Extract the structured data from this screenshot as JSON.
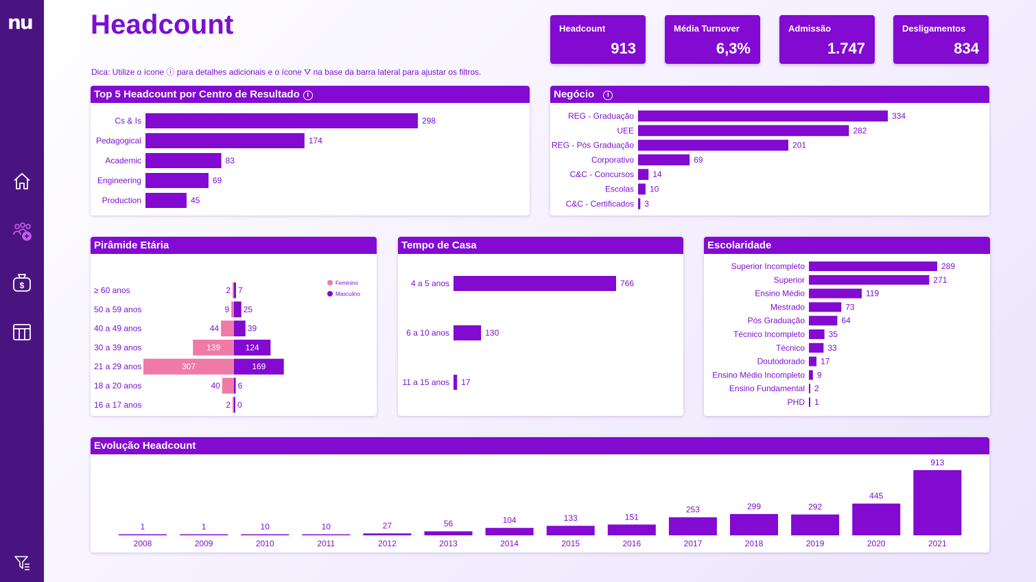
{
  "app": {
    "logo": "nu",
    "title": "Headcount",
    "tip": "Dica: Utilize o ícone ⓘ para detalhes adicionais e o ícone ⛛ na base da barra lateral para ajustar os filtros."
  },
  "sidebar": {
    "icons": [
      "home-icon",
      "people-icon",
      "money-bag-icon",
      "table-icon",
      "filter-icon"
    ]
  },
  "kpis": [
    {
      "label": "Headcount",
      "value": "913"
    },
    {
      "label": "Média Turnover",
      "value": "6,3%"
    },
    {
      "label": "Admissão",
      "value": "1.747"
    },
    {
      "label": "Desligamentos",
      "value": "834"
    }
  ],
  "colors": {
    "accent": "#820ad1",
    "female": "#f07aa6",
    "sidebar": "#4a1480"
  },
  "panels": {
    "top5": "Top 5 Headcount por Centro de Resultado",
    "negocio": "Negócio",
    "piramide": "Pirâmide Etária",
    "tempo": "Tempo de Casa",
    "escolaridade": "Escolaridade",
    "evolucao": "Evolução Headcount"
  },
  "chart_data": [
    {
      "id": "top5",
      "type": "bar",
      "orientation": "horizontal",
      "title": "Top 5 Headcount por Centro de Resultado",
      "categories": [
        "Cs & Is",
        "Pedagogical",
        "Academic",
        "Engineering",
        "Production"
      ],
      "values": [
        298,
        174,
        83,
        69,
        45
      ]
    },
    {
      "id": "negocio",
      "type": "bar",
      "orientation": "horizontal",
      "title": "Negócio",
      "categories": [
        "REG - Graduação",
        "UEE",
        "REG - Pós Graduação",
        "Corporativo",
        "C&C - Concursos",
        "Escolas",
        "C&C - Certificados"
      ],
      "values": [
        334,
        282,
        201,
        69,
        14,
        10,
        3
      ]
    },
    {
      "id": "piramide",
      "type": "bar",
      "orientation": "horizontal-diverging",
      "title": "Pirâmide Etária",
      "categories": [
        "≥ 60 anos",
        "50 a 59 anos",
        "40 a 49 anos",
        "30 a 39 anos",
        "21 a 29 anos",
        "18 a 20 anos",
        "16 a 17 anos"
      ],
      "series": [
        {
          "name": "Feminino",
          "values": [
            2,
            9,
            44,
            139,
            307,
            40,
            2
          ]
        },
        {
          "name": "Masculino",
          "values": [
            7,
            25,
            39,
            124,
            169,
            6,
            0
          ]
        }
      ],
      "legend": [
        "Feminino",
        "Masculino"
      ]
    },
    {
      "id": "tempo",
      "type": "bar",
      "orientation": "horizontal",
      "title": "Tempo de Casa",
      "categories": [
        "4 a 5 anos",
        "6 a 10 anos",
        "11 a 15 anos"
      ],
      "values": [
        766,
        130,
        17
      ]
    },
    {
      "id": "escolaridade",
      "type": "bar",
      "orientation": "horizontal",
      "title": "Escolaridade",
      "categories": [
        "Superior Incompleto",
        "Superior",
        "Ensino Médio",
        "Mestrado",
        "Pós Graduação",
        "Técnico Incompleto",
        "Técnico",
        "Doutodorado",
        "Ensino Médio Incompleto",
        "Ensino Fundamental",
        "PHD"
      ],
      "values": [
        289,
        271,
        119,
        73,
        64,
        35,
        33,
        17,
        9,
        2,
        1
      ]
    },
    {
      "id": "evolucao",
      "type": "bar",
      "orientation": "vertical",
      "title": "Evolução Headcount",
      "categories": [
        "2008",
        "2009",
        "2010",
        "2011",
        "2012",
        "2013",
        "2014",
        "2015",
        "2016",
        "2017",
        "2018",
        "2019",
        "2020",
        "2021"
      ],
      "values": [
        1,
        1,
        10,
        10,
        27,
        56,
        104,
        133,
        151,
        253,
        299,
        292,
        445,
        913
      ]
    }
  ]
}
